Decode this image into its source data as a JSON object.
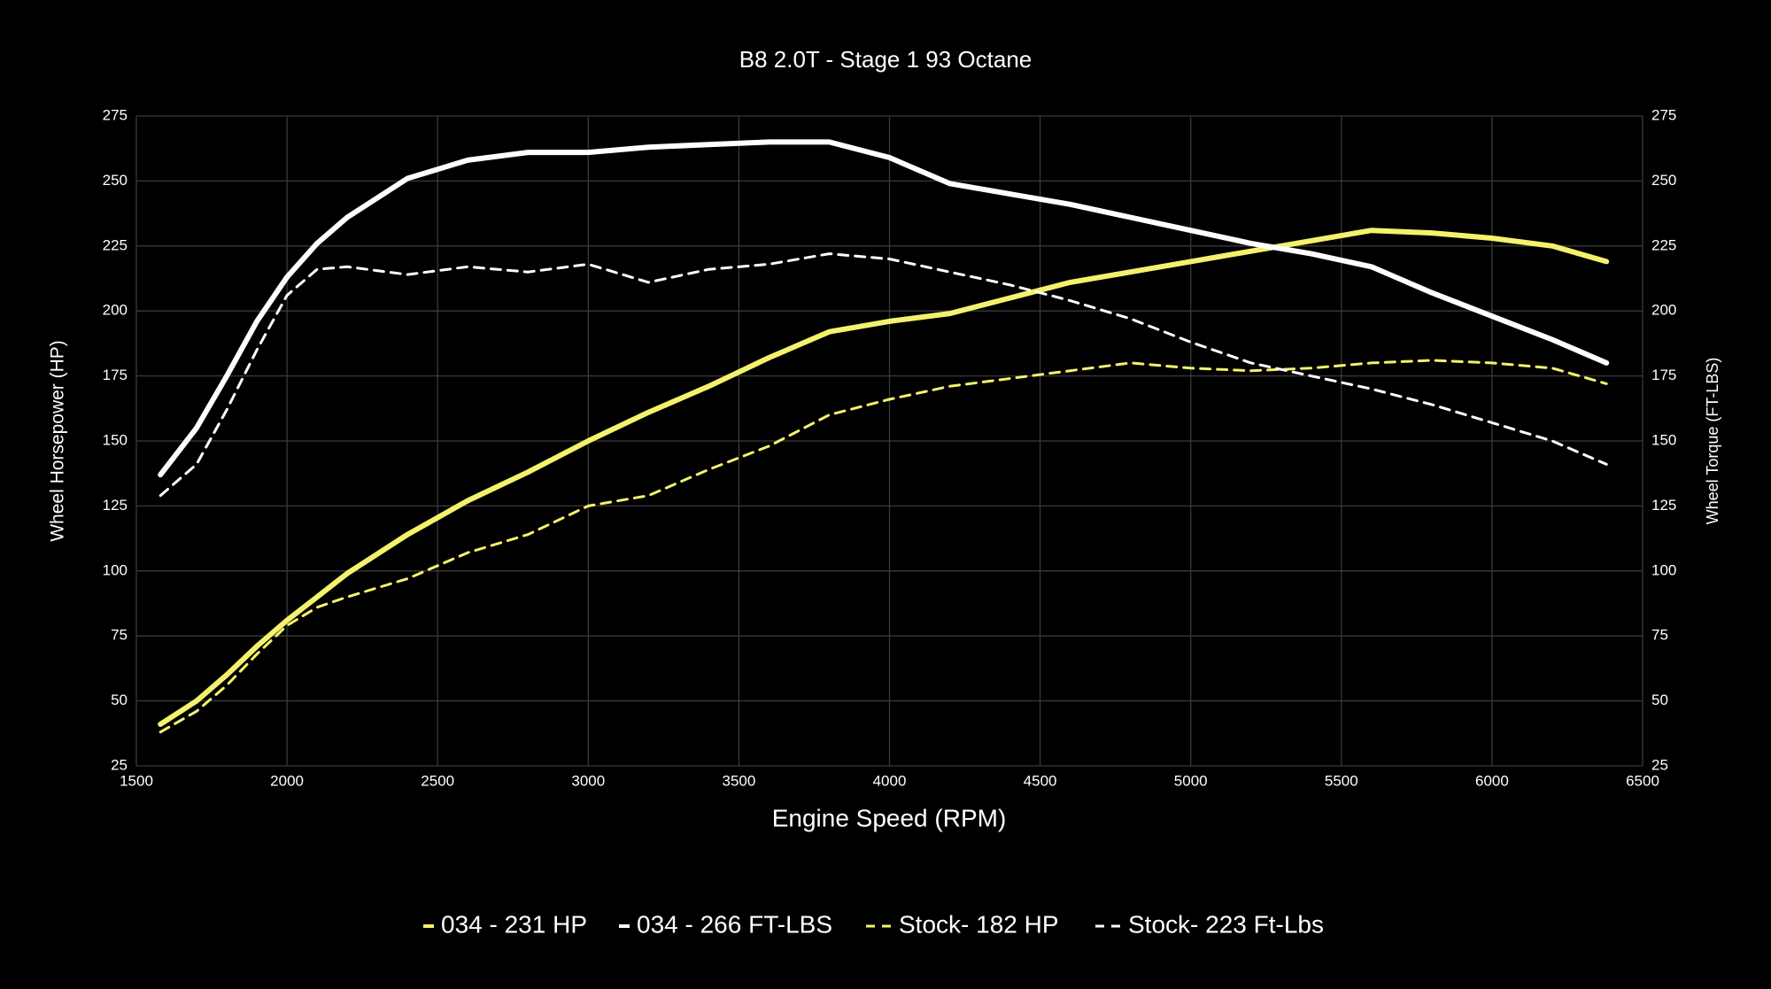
{
  "chart_data": {
    "type": "line",
    "title": "B8 2.0T - Stage 1 93 Octane",
    "x_label": "Engine Speed (RPM)",
    "y_label": "Wheel Horsepower (HP)",
    "y2_label": "Wheel Torque (FT-LBS)",
    "x": [
      1580,
      1700,
      1800,
      1900,
      2000,
      2100,
      2200,
      2400,
      2600,
      2800,
      3000,
      3200,
      3400,
      3600,
      3800,
      4000,
      4200,
      4400,
      4600,
      4800,
      5000,
      5200,
      5400,
      5600,
      5800,
      6000,
      6200,
      6380
    ],
    "series": [
      {
        "name": "034 - 231 HP",
        "color": "#f4f26c",
        "line_style": "solid",
        "axis": "y",
        "values": [
          41,
          50,
          60,
          71,
          81,
          90,
          99,
          114,
          127,
          138,
          150,
          161,
          171,
          182,
          192,
          196,
          199,
          205,
          211,
          215,
          219,
          223,
          227,
          231,
          230,
          228,
          225,
          219
        ]
      },
      {
        "name": "034 - 266 FT-LBS",
        "color": "#ffffff",
        "line_style": "solid",
        "axis": "y2",
        "values": [
          137,
          155,
          175,
          196,
          213,
          226,
          236,
          251,
          258,
          261,
          261,
          263,
          264,
          265,
          265,
          259,
          249,
          245,
          241,
          236,
          231,
          226,
          222,
          217,
          207,
          198,
          189,
          180
        ]
      },
      {
        "name": "Stock- 182 HP",
        "color": "#f4f26c",
        "line_style": "dashed",
        "axis": "y",
        "values": [
          38,
          46,
          56,
          68,
          79,
          86,
          90,
          97,
          107,
          114,
          125,
          129,
          139,
          148,
          160,
          166,
          171,
          174,
          177,
          180,
          178,
          177,
          178,
          180,
          181,
          180,
          178,
          172
        ]
      },
      {
        "name": "Stock- 223 Ft-Lbs",
        "color": "#ffffff",
        "line_style": "dashed",
        "axis": "y2",
        "values": [
          129,
          141,
          162,
          185,
          206,
          216,
          217,
          214,
          217,
          215,
          218,
          211,
          216,
          218,
          222,
          220,
          215,
          210,
          204,
          197,
          188,
          180,
          175,
          170,
          164,
          157,
          150,
          141
        ]
      }
    ],
    "xlim": [
      1500,
      6500
    ],
    "xticks": [
      1500,
      2000,
      2500,
      3000,
      3500,
      4000,
      4500,
      5000,
      5500,
      6000,
      6500
    ],
    "ylim": [
      25,
      275
    ],
    "yticks": [
      25,
      50,
      75,
      100,
      125,
      150,
      175,
      200,
      225,
      250,
      275
    ],
    "y2lim": [
      25,
      275
    ],
    "y2ticks": [
      25,
      50,
      75,
      100,
      125,
      150,
      175,
      200,
      225,
      250,
      275
    ],
    "grid": true,
    "legend": "bottom"
  }
}
